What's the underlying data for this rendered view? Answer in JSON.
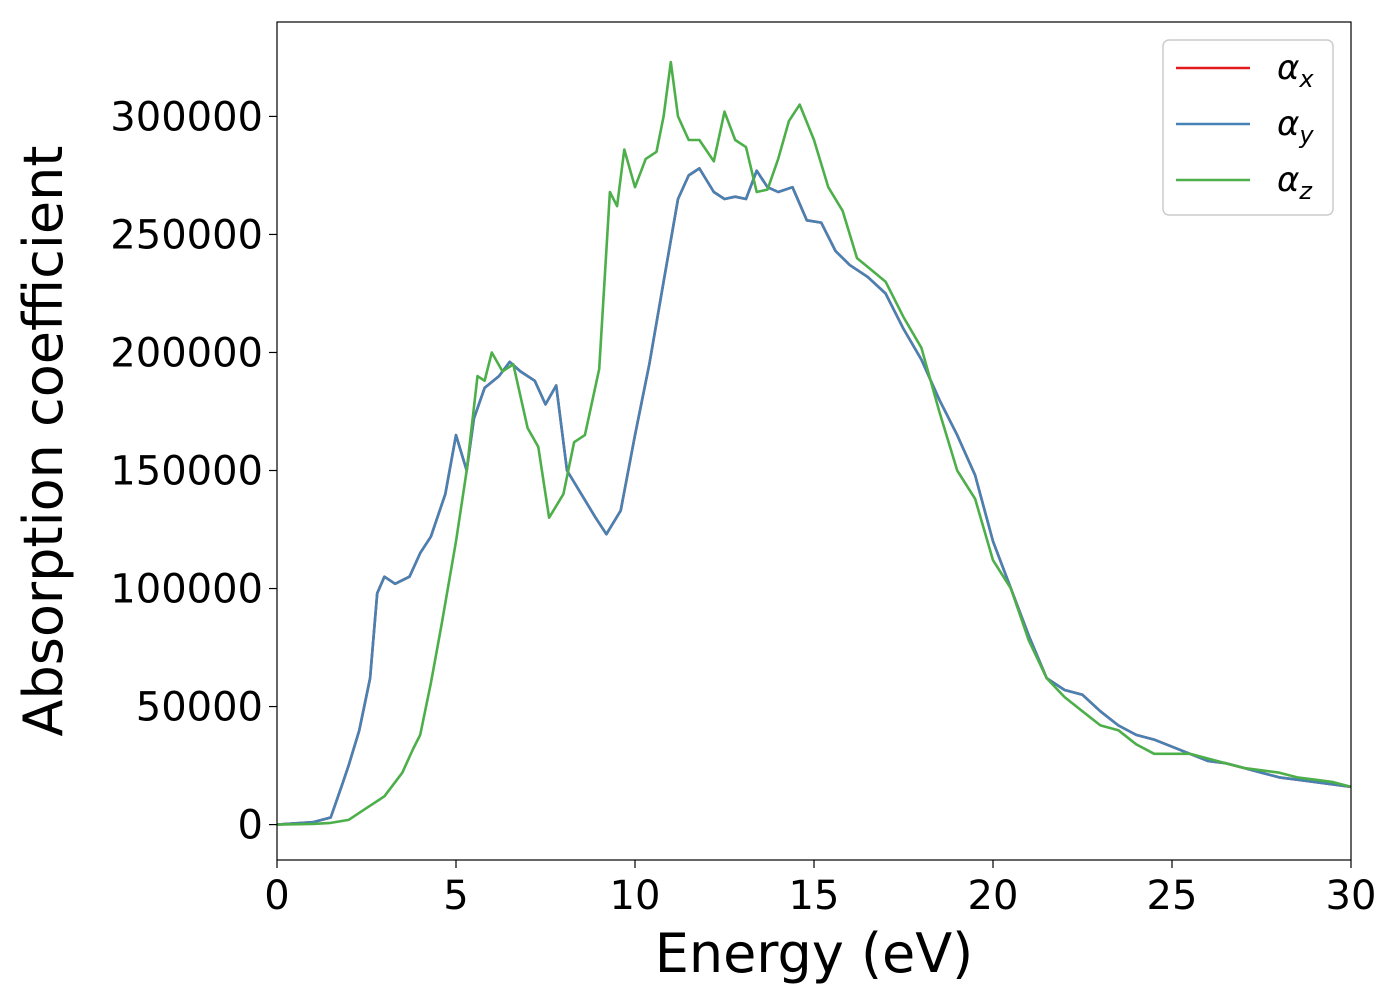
{
  "chart_data": {
    "type": "line",
    "title": "",
    "xlabel": "Energy (eV)",
    "ylabel": "Absorption coefficient",
    "xlim": [
      0,
      30
    ],
    "ylim": [
      -15000,
      340000
    ],
    "xticks": [
      0,
      5,
      10,
      15,
      20,
      25,
      30
    ],
    "yticks": [
      0,
      50000,
      100000,
      150000,
      200000,
      250000,
      300000
    ],
    "grid": false,
    "legend": "top-right",
    "series": [
      {
        "name": "α_x",
        "symbol": "α",
        "sub": "x",
        "color": "#e41a1c",
        "x": [
          0,
          1,
          1.5,
          1.8,
          2,
          2.3,
          2.6,
          2.8,
          3.0,
          3.3,
          3.7,
          4.0,
          4.3,
          4.7,
          5.0,
          5.3,
          5.5,
          5.8,
          6.2,
          6.5,
          6.8,
          7.2,
          7.5,
          7.8,
          8.1,
          8.5,
          8.9,
          9.2,
          9.6,
          10,
          10.4,
          10.8,
          11.2,
          11.5,
          11.8,
          12.2,
          12.5,
          12.8,
          13.1,
          13.4,
          13.7,
          14.0,
          14.4,
          14.8,
          15.2,
          15.6,
          16.0,
          16.5,
          17.0,
          17.5,
          18.0,
          18.5,
          19.0,
          19.5,
          20.0,
          20.5,
          21.0,
          21.5,
          22.0,
          22.5,
          23.0,
          23.5,
          24.0,
          24.5,
          25.0,
          25.5,
          26.0,
          26.5,
          27.0,
          27.5,
          28.0,
          28.5,
          29.0,
          29.5,
          30.0
        ],
        "y": [
          0,
          1000,
          3000,
          16000,
          25000,
          40000,
          62000,
          98000,
          105000,
          102000,
          105000,
          115000,
          122000,
          140000,
          165000,
          150000,
          172000,
          185000,
          190000,
          196000,
          192000,
          188000,
          178000,
          186000,
          150000,
          140000,
          130000,
          123000,
          133000,
          165000,
          195000,
          230000,
          265000,
          275000,
          278000,
          268000,
          265000,
          266000,
          265000,
          277000,
          270000,
          268000,
          270000,
          256000,
          255000,
          243000,
          237000,
          232000,
          225000,
          210000,
          197000,
          180000,
          165000,
          148000,
          120000,
          100000,
          80000,
          62000,
          57000,
          55000,
          48000,
          42000,
          38000,
          36000,
          33000,
          30000,
          27000,
          26000,
          24000,
          22000,
          20000,
          19000,
          18000,
          17000,
          16000
        ]
      },
      {
        "name": "α_y",
        "symbol": "α",
        "sub": "y",
        "color": "#4682b4",
        "x": [
          0,
          1,
          1.5,
          1.8,
          2,
          2.3,
          2.6,
          2.8,
          3.0,
          3.3,
          3.7,
          4.0,
          4.3,
          4.7,
          5.0,
          5.3,
          5.5,
          5.8,
          6.2,
          6.5,
          6.8,
          7.2,
          7.5,
          7.8,
          8.1,
          8.5,
          8.9,
          9.2,
          9.6,
          10,
          10.4,
          10.8,
          11.2,
          11.5,
          11.8,
          12.2,
          12.5,
          12.8,
          13.1,
          13.4,
          13.7,
          14.0,
          14.4,
          14.8,
          15.2,
          15.6,
          16.0,
          16.5,
          17.0,
          17.5,
          18.0,
          18.5,
          19.0,
          19.5,
          20.0,
          20.5,
          21.0,
          21.5,
          22.0,
          22.5,
          23.0,
          23.5,
          24.0,
          24.5,
          25.0,
          25.5,
          26.0,
          26.5,
          27.0,
          27.5,
          28.0,
          28.5,
          29.0,
          29.5,
          30.0
        ],
        "y": [
          0,
          1000,
          3000,
          16000,
          25000,
          40000,
          62000,
          98000,
          105000,
          102000,
          105000,
          115000,
          122000,
          140000,
          165000,
          150000,
          172000,
          185000,
          190000,
          196000,
          192000,
          188000,
          178000,
          186000,
          150000,
          140000,
          130000,
          123000,
          133000,
          165000,
          195000,
          230000,
          265000,
          275000,
          278000,
          268000,
          265000,
          266000,
          265000,
          277000,
          270000,
          268000,
          270000,
          256000,
          255000,
          243000,
          237000,
          232000,
          225000,
          210000,
          197000,
          180000,
          165000,
          148000,
          120000,
          100000,
          80000,
          62000,
          57000,
          55000,
          48000,
          42000,
          38000,
          36000,
          33000,
          30000,
          27000,
          26000,
          24000,
          22000,
          20000,
          19000,
          18000,
          17000,
          16000
        ]
      },
      {
        "name": "α_z",
        "symbol": "α",
        "sub": "z",
        "color": "#4daf4a",
        "x": [
          0,
          1,
          1.5,
          2,
          2.5,
          3.0,
          3.5,
          3.8,
          4.0,
          4.3,
          4.6,
          5.0,
          5.3,
          5.6,
          5.8,
          6.0,
          6.3,
          6.6,
          7.0,
          7.3,
          7.6,
          8.0,
          8.3,
          8.6,
          9.0,
          9.3,
          9.5,
          9.7,
          10.0,
          10.3,
          10.6,
          10.8,
          11.0,
          11.2,
          11.5,
          11.8,
          12.2,
          12.5,
          12.8,
          13.1,
          13.4,
          13.7,
          14.0,
          14.3,
          14.6,
          15.0,
          15.4,
          15.8,
          16.2,
          16.6,
          17.0,
          17.5,
          18.0,
          18.5,
          19.0,
          19.5,
          20.0,
          20.5,
          21.0,
          21.5,
          22.0,
          22.5,
          23.0,
          23.5,
          24.0,
          24.5,
          25.0,
          25.5,
          26.0,
          26.5,
          27.0,
          27.5,
          28.0,
          28.5,
          29.0,
          29.5,
          30.0
        ],
        "y": [
          0,
          300,
          700,
          2000,
          7000,
          12000,
          22000,
          32000,
          38000,
          60000,
          85000,
          120000,
          150000,
          190000,
          188000,
          200000,
          192000,
          195000,
          168000,
          160000,
          130000,
          140000,
          162000,
          165000,
          193000,
          268000,
          262000,
          286000,
          270000,
          282000,
          285000,
          300000,
          323000,
          300000,
          290000,
          290000,
          281000,
          302000,
          290000,
          287000,
          268000,
          269000,
          282000,
          298000,
          305000,
          290000,
          270000,
          260000,
          240000,
          235000,
          230000,
          215000,
          202000,
          175000,
          150000,
          138000,
          112000,
          100000,
          78000,
          62000,
          54000,
          48000,
          42000,
          40000,
          34000,
          30000,
          30000,
          30000,
          28000,
          26000,
          24000,
          23000,
          22000,
          20000,
          19000,
          18000,
          16000
        ]
      }
    ]
  }
}
